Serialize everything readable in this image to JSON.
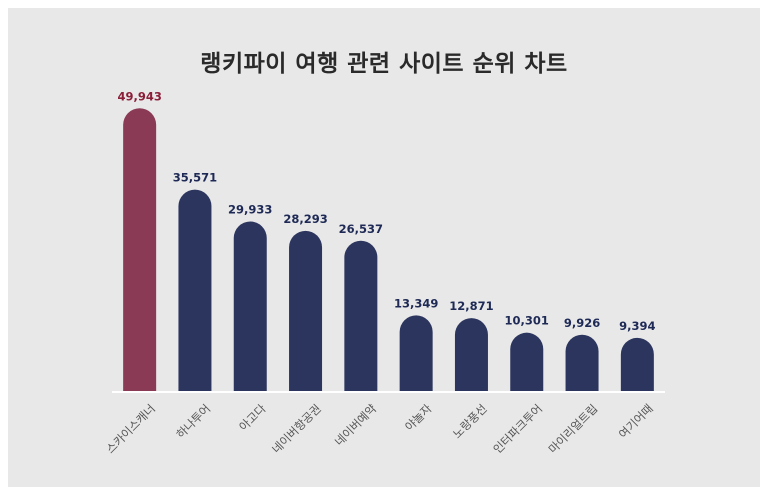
{
  "chart_data": {
    "type": "bar",
    "title": "랭키파이 여행 관련 사이트 순위 차트",
    "categories": [
      "스카이스캐너",
      "하나투어",
      "아고다",
      "네이버항공권",
      "네이버예약",
      "야놀자",
      "노랑풍선",
      "인터파크투어",
      "마이리얼트립",
      "여기어때"
    ],
    "values": [
      49943,
      35571,
      29933,
      28293,
      26537,
      13349,
      12871,
      10301,
      9926,
      9394
    ],
    "value_labels": [
      "49,943",
      "35,571",
      "29,933",
      "28,293",
      "26,537",
      "13,349",
      "12,871",
      "10,301",
      "9,926",
      "9,394"
    ],
    "highlight_index": 0,
    "colors": {
      "highlight": "#8b3a55",
      "bar": "#2b355e",
      "highlight_label": "#8b1f3a",
      "label": "#1e2a55",
      "axis": "#ffffff"
    },
    "ylim": [
      0,
      55000
    ],
    "grid": false,
    "legend": "none"
  }
}
